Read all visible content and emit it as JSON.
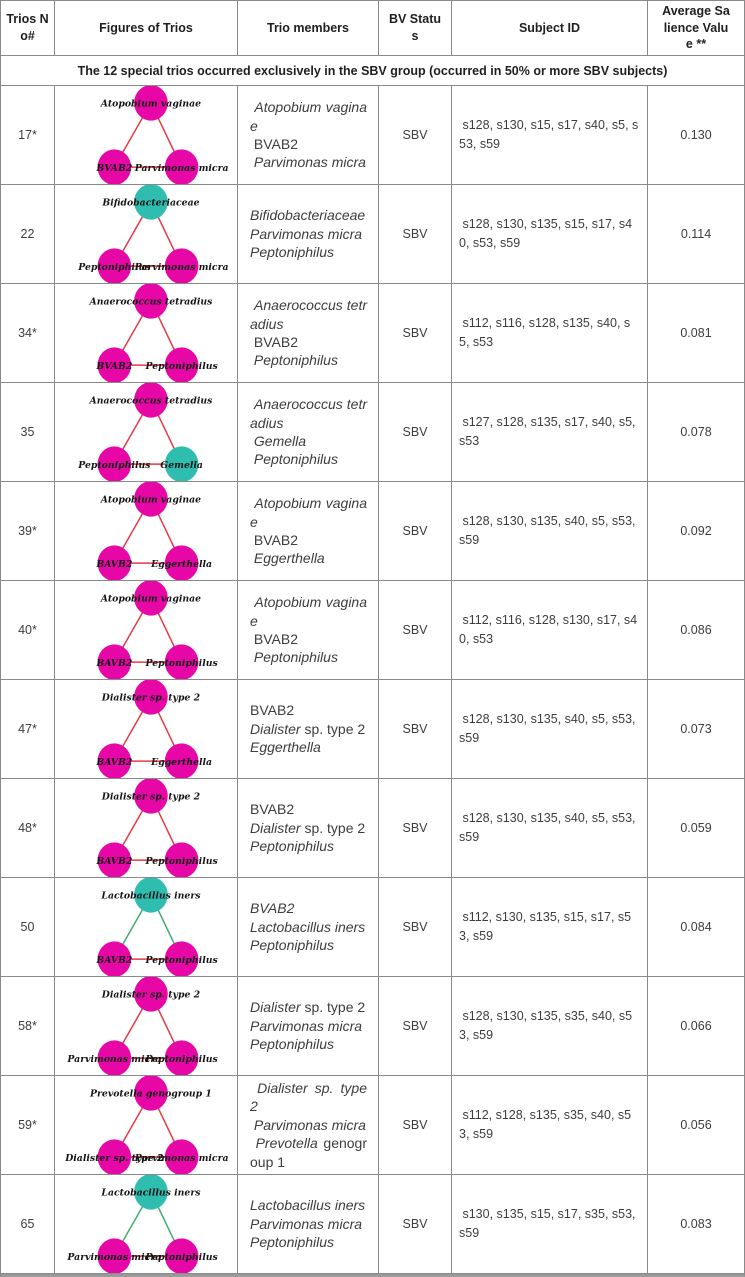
{
  "colors": {
    "magenta": "#e607a6",
    "cyan": "#2fbdb0",
    "red": "#e73843",
    "green": "#3ead6d",
    "border": "#898989",
    "text": "#3d3d3d"
  },
  "header": {
    "columns": [
      "Trios No#",
      "Figures of Trios",
      "Trio members",
      "BV Status",
      "Subject ID",
      "Average Salience Value **"
    ]
  },
  "subheader": "The 12 special trios occurred exclusively in the SBV group (occurred in 50% or more SBV subjects)",
  "rows": [
    {
      "no": "17*",
      "figure": {
        "nodes": {
          "top": {
            "label": "Atopobium vaginae",
            "c": "magenta"
          },
          "left": {
            "label": "BVAB2",
            "c": "magenta"
          },
          "right": {
            "label": "Parvimonas micra",
            "c": "magenta"
          }
        },
        "edges": [
          {
            "a": "top",
            "b": "left",
            "c": "red"
          },
          {
            "a": "top",
            "b": "right",
            "c": "red"
          },
          {
            "a": "left",
            "b": "right",
            "c": "red"
          }
        ]
      },
      "members": [
        [
          {
            "t": " Atopobium vaginae",
            "i": true
          }
        ],
        [
          {
            "t": " BVAB2",
            "i": false
          }
        ],
        [
          {
            "t": " Parvimonas micra",
            "i": true
          }
        ]
      ],
      "status": "SBV",
      "subjects": " s128, s130, s15, s17, s40, s5, s53, s59",
      "salience": "0.130"
    },
    {
      "no": "22",
      "figure": {
        "nodes": {
          "top": {
            "label": "Bifidobacteriaceae",
            "c": "cyan"
          },
          "left": {
            "label": "Peptoniphilus",
            "c": "magenta"
          },
          "right": {
            "label": "Parvimonas micra",
            "c": "magenta"
          }
        },
        "edges": [
          {
            "a": "top",
            "b": "left",
            "c": "red"
          },
          {
            "a": "top",
            "b": "right",
            "c": "red"
          },
          {
            "a": "left",
            "b": "right",
            "c": "red"
          }
        ]
      },
      "members": [
        [
          {
            "t": "Bifidobacteriaceae",
            "i": true
          }
        ],
        [
          {
            "t": "Parvimonas micra",
            "i": true
          }
        ],
        [
          {
            "t": "Peptoniphilus",
            "i": true
          }
        ]
      ],
      "status": "SBV",
      "subjects": " s128, s130, s135, s15, s17, s40, s53, s59",
      "salience": "0.114"
    },
    {
      "no": "34*",
      "figure": {
        "nodes": {
          "top": {
            "label": "Anaerococcus tetradius",
            "c": "magenta"
          },
          "left": {
            "label": "BVAB2",
            "c": "magenta"
          },
          "right": {
            "label": "Peptoniphilus",
            "c": "magenta"
          }
        },
        "edges": [
          {
            "a": "top",
            "b": "left",
            "c": "red"
          },
          {
            "a": "top",
            "b": "right",
            "c": "red"
          },
          {
            "a": "left",
            "b": "right",
            "c": "red"
          }
        ]
      },
      "members": [
        [
          {
            "t": " Anaerococcus tetradius",
            "i": true
          }
        ],
        [
          {
            "t": " BVAB2",
            "i": false
          }
        ],
        [
          {
            "t": " Peptoniphilus",
            "i": true
          }
        ]
      ],
      "status": "SBV",
      "subjects": " s112, s116, s128, s135, s40, s5, s53",
      "salience": "0.081"
    },
    {
      "no": "35",
      "figure": {
        "nodes": {
          "top": {
            "label": "Anaerococcus tetradius",
            "c": "magenta"
          },
          "left": {
            "label": "Peptoniphilus",
            "c": "magenta"
          },
          "right": {
            "label": "Gemella",
            "c": "cyan"
          }
        },
        "edges": [
          {
            "a": "top",
            "b": "left",
            "c": "red"
          },
          {
            "a": "top",
            "b": "right",
            "c": "red"
          },
          {
            "a": "left",
            "b": "right",
            "c": "red"
          }
        ]
      },
      "members": [
        [
          {
            "t": " Anaerococcus tetradius",
            "i": true
          }
        ],
        [
          {
            "t": " Gemella",
            "i": true
          }
        ],
        [
          {
            "t": " Peptoniphilus",
            "i": true
          }
        ]
      ],
      "status": "SBV",
      "subjects": " s127, s128, s135, s17, s40, s5, s53",
      "salience": "0.078"
    },
    {
      "no": "39*",
      "figure": {
        "nodes": {
          "top": {
            "label": "Atopobium vaginae",
            "c": "magenta"
          },
          "left": {
            "label": "BAVB2",
            "c": "magenta"
          },
          "right": {
            "label": "Eggerthella",
            "c": "magenta"
          }
        },
        "edges": [
          {
            "a": "top",
            "b": "left",
            "c": "red"
          },
          {
            "a": "top",
            "b": "right",
            "c": "red"
          },
          {
            "a": "left",
            "b": "right",
            "c": "red"
          }
        ]
      },
      "members": [
        [
          {
            "t": " Atopobium vaginae",
            "i": true
          }
        ],
        [
          {
            "t": " BVAB2",
            "i": false
          }
        ],
        [
          {
            "t": " Eggerthella",
            "i": true
          }
        ]
      ],
      "status": "SBV",
      "subjects": " s128, s130, s135, s40, s5, s53, s59",
      "salience": "0.092"
    },
    {
      "no": "40*",
      "figure": {
        "nodes": {
          "top": {
            "label": "Atopobium vaginae",
            "c": "magenta"
          },
          "left": {
            "label": "BAVB2",
            "c": "magenta"
          },
          "right": {
            "label": "Peptoniphilus",
            "c": "magenta"
          }
        },
        "edges": [
          {
            "a": "top",
            "b": "left",
            "c": "red"
          },
          {
            "a": "top",
            "b": "right",
            "c": "red"
          },
          {
            "a": "left",
            "b": "right",
            "c": "red"
          }
        ]
      },
      "members": [
        [
          {
            "t": " Atopobium vaginae",
            "i": true
          }
        ],
        [
          {
            "t": " BVAB2",
            "i": false
          }
        ],
        [
          {
            "t": " Peptoniphilus",
            "i": true
          }
        ]
      ],
      "status": "SBV",
      "subjects": " s112, s116, s128, s130, s17, s40, s53",
      "salience": "0.086"
    },
    {
      "no": "47*",
      "figure": {
        "nodes": {
          "top": {
            "label": "Dialister sp. type 2",
            "c": "magenta"
          },
          "left": {
            "label": "BAVB2",
            "c": "magenta"
          },
          "right": {
            "label": "Eggerthella",
            "c": "magenta"
          }
        },
        "edges": [
          {
            "a": "top",
            "b": "left",
            "c": "red"
          },
          {
            "a": "top",
            "b": "right",
            "c": "red"
          },
          {
            "a": "left",
            "b": "right",
            "c": "red"
          }
        ]
      },
      "members": [
        [
          {
            "t": "BVAB2",
            "i": false
          }
        ],
        [
          {
            "t": "Dialister",
            "i": true
          },
          {
            "t": " sp. type 2",
            "i": false
          }
        ],
        [
          {
            "t": "Eggerthella",
            "i": true
          }
        ]
      ],
      "status": "SBV",
      "subjects": " s128, s130, s135, s40, s5, s53, s59",
      "salience": "0.073"
    },
    {
      "no": "48*",
      "figure": {
        "nodes": {
          "top": {
            "label": "Dialister sp. type 2",
            "c": "magenta"
          },
          "left": {
            "label": "BAVB2",
            "c": "magenta"
          },
          "right": {
            "label": "Peptoniphilus",
            "c": "magenta"
          }
        },
        "edges": [
          {
            "a": "top",
            "b": "left",
            "c": "red"
          },
          {
            "a": "top",
            "b": "right",
            "c": "red"
          },
          {
            "a": "left",
            "b": "right",
            "c": "red"
          }
        ]
      },
      "members": [
        [
          {
            "t": "BVAB2",
            "i": false
          }
        ],
        [
          {
            "t": "Dialister",
            "i": true
          },
          {
            "t": " sp. type 2",
            "i": false
          }
        ],
        [
          {
            "t": "Peptoniphilus",
            "i": true
          }
        ]
      ],
      "status": "SBV",
      "subjects": " s128, s130, s135, s40, s5, s53, s59",
      "salience": "0.059"
    },
    {
      "no": "50",
      "figure": {
        "nodes": {
          "top": {
            "label": "Lactobacillus iners",
            "c": "cyan"
          },
          "left": {
            "label": "BAVB2",
            "c": "magenta"
          },
          "right": {
            "label": "Peptoniphilus",
            "c": "magenta"
          }
        },
        "edges": [
          {
            "a": "top",
            "b": "left",
            "c": "green"
          },
          {
            "a": "top",
            "b": "right",
            "c": "green"
          },
          {
            "a": "left",
            "b": "right",
            "c": "red"
          }
        ]
      },
      "members": [
        [
          {
            "t": "BVAB2",
            "i": true
          }
        ],
        [
          {
            "t": "Lactobacillus iners",
            "i": true
          }
        ],
        [
          {
            "t": "Peptoniphilus",
            "i": true
          }
        ]
      ],
      "status": "SBV",
      "subjects": " s112, s130, s135, s15, s17, s53, s59",
      "salience": "0.084"
    },
    {
      "no": "58*",
      "figure": {
        "nodes": {
          "top": {
            "label": "Dialister sp. type 2",
            "c": "magenta"
          },
          "left": {
            "label": "Parvimonas micra",
            "c": "magenta"
          },
          "right": {
            "label": "Peptoniphilus",
            "c": "magenta"
          }
        },
        "edges": [
          {
            "a": "top",
            "b": "left",
            "c": "red"
          },
          {
            "a": "top",
            "b": "right",
            "c": "red"
          },
          {
            "a": "left",
            "b": "right",
            "c": "red"
          }
        ]
      },
      "members": [
        [
          {
            "t": "Dialister",
            "i": true
          },
          {
            "t": " sp. type 2",
            "i": false
          }
        ],
        [
          {
            "t": "Parvimonas micra",
            "i": true
          }
        ],
        [
          {
            "t": "Peptoniphilus",
            "i": true
          }
        ]
      ],
      "status": "SBV",
      "subjects": " s128, s130, s135, s35, s40, s53, s59",
      "salience": "0.066"
    },
    {
      "no": "59*",
      "figure": {
        "nodes": {
          "top": {
            "label": "Prevotella genogroup 1",
            "c": "magenta"
          },
          "left": {
            "label": "Dialister sp. type 2",
            "c": "magenta"
          },
          "right": {
            "label": "Parvimonas micra",
            "c": "magenta"
          }
        },
        "edges": [
          {
            "a": "top",
            "b": "left",
            "c": "red"
          },
          {
            "a": "top",
            "b": "right",
            "c": "red"
          },
          {
            "a": "left",
            "b": "right",
            "c": "red"
          }
        ]
      },
      "members": [
        [
          {
            "t": " Dialister sp. type 2",
            "i": true
          }
        ],
        [
          {
            "t": " Parvimonas micra",
            "i": true
          }
        ],
        [
          {
            "t": " Prevotella",
            "i": true
          },
          {
            "t": " genogroup 1",
            "i": false
          }
        ]
      ],
      "status": "SBV",
      "subjects": " s112, s128, s135, s35, s40, s53, s59",
      "salience": "0.056"
    },
    {
      "no": "65",
      "figure": {
        "nodes": {
          "top": {
            "label": "Lactobacillus iners",
            "c": "cyan"
          },
          "left": {
            "label": "Parvimonas micra",
            "c": "magenta"
          },
          "right": {
            "label": "Peptoniphilus",
            "c": "magenta"
          }
        },
        "edges": [
          {
            "a": "top",
            "b": "left",
            "c": "green"
          },
          {
            "a": "top",
            "b": "right",
            "c": "green"
          },
          {
            "a": "left",
            "b": "right",
            "c": "red"
          }
        ]
      },
      "members": [
        [
          {
            "t": "Lactobacillus iners",
            "i": true
          }
        ],
        [
          {
            "t": "Parvimonas micra",
            "i": true
          }
        ],
        [
          {
            "t": "Peptoniphilus",
            "i": true
          }
        ]
      ],
      "status": "SBV",
      "subjects": " s130, s135, s15, s17, s35, s53, s59",
      "salience": "0.083"
    }
  ]
}
